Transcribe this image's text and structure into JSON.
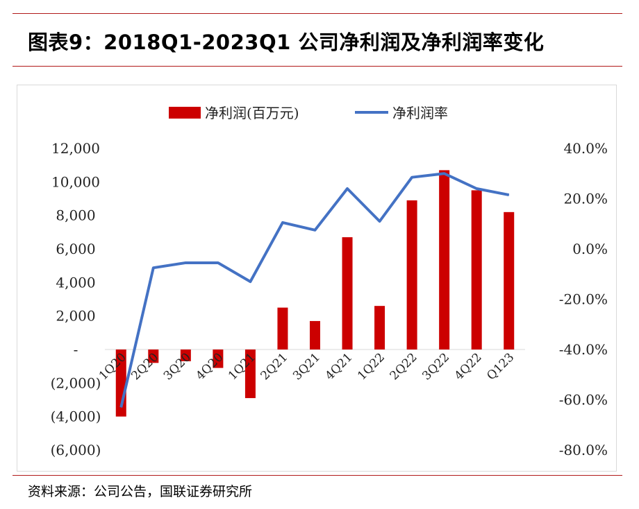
{
  "page": {
    "title": "图表9：2018Q1-2023Q1 公司净利润及净利润率变化",
    "source": "资料来源：公司公告，国联证券研究所"
  },
  "colors": {
    "bar": "#cc0000",
    "line": "#4472c4",
    "rule": "#b01818"
  },
  "chart_data": {
    "type": "bar",
    "categories": [
      "1Q20",
      "2Q20",
      "3Q20",
      "4Q20",
      "1Q21",
      "2Q21",
      "3Q21",
      "4Q21",
      "1Q22",
      "2Q22",
      "3Q22",
      "4Q22",
      "Q123"
    ],
    "series": [
      {
        "name": "净利润(百万元)",
        "type": "bar",
        "axis": "left",
        "values": [
          -4000,
          -800,
          -700,
          -1100,
          -2900,
          2500,
          1700,
          6700,
          2600,
          8900,
          10700,
          9500,
          8200
        ]
      },
      {
        "name": "净利润率",
        "type": "line",
        "axis": "right",
        "values": [
          -63,
          -7.5,
          -5.5,
          -5.5,
          -13,
          10.5,
          7.5,
          24,
          11,
          28.5,
          30,
          24,
          21.5
        ]
      }
    ],
    "y_left": {
      "ylim": [
        -6000,
        12000
      ],
      "tick_labels": [
        "12,000",
        "10,000",
        "8,000",
        "6,000",
        "4,000",
        "2,000",
        "-",
        "(2,000)",
        "(4,000)",
        "(6,000)"
      ]
    },
    "y_right": {
      "ylim": [
        -80,
        40
      ],
      "tick_labels": [
        "40.0%",
        "20.0%",
        "0.0%",
        "-20.0%",
        "-40.0%",
        "-60.0%",
        "-80.0%"
      ]
    },
    "legend_position": "top-center",
    "grid": false
  }
}
